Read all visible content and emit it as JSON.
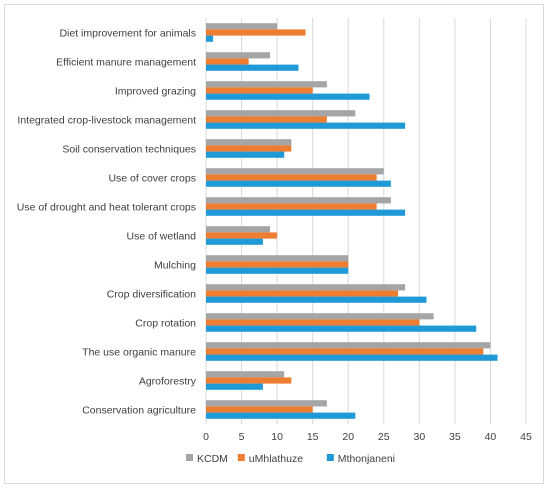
{
  "chart_data": {
    "type": "bar",
    "orientation": "horizontal",
    "categories": [
      "Diet improvement for animals",
      "Efficient manure management",
      "Improved grazing",
      "Integrated crop-livestock management",
      "Soil conservation techniques",
      "Use of cover crops",
      "Use of drought and heat tolerant crops",
      "Use of wetland",
      "Mulching",
      "Crop diversification",
      "Crop rotation",
      "The use organic manure",
      "Agroforestry",
      "Conservation agriculture"
    ],
    "series": [
      {
        "name": "KCDM",
        "color": "#a5a5a5",
        "values": [
          10,
          9,
          17,
          21,
          12,
          25,
          26,
          9,
          20,
          28,
          32,
          40,
          11,
          17
        ]
      },
      {
        "name": "uMhlathuze",
        "color": "#ed7d31",
        "values": [
          14,
          6,
          15,
          17,
          12,
          24,
          24,
          10,
          20,
          27,
          30,
          39,
          12,
          15
        ]
      },
      {
        "name": "Mthonjaneni",
        "color": "#1f9ad6",
        "values": [
          1,
          13,
          23,
          28,
          11,
          26,
          28,
          8,
          20,
          31,
          38,
          41,
          8,
          21
        ]
      }
    ],
    "xticks": [
      "0",
      "5",
      "10",
      "15",
      "20",
      "25",
      "30",
      "35",
      "40",
      "45"
    ],
    "xlim": [
      0,
      45
    ],
    "grid": true,
    "legend_position": "bottom",
    "title": "",
    "xlabel": "",
    "ylabel": ""
  }
}
